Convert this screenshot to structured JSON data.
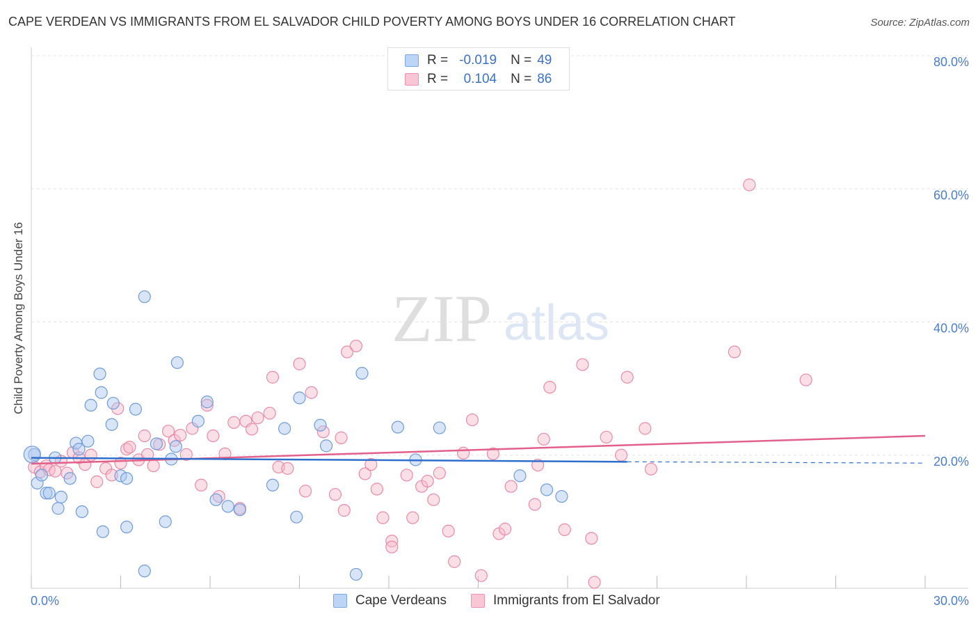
{
  "title": "CAPE VERDEAN VS IMMIGRANTS FROM EL SALVADOR CHILD POVERTY AMONG BOYS UNDER 16 CORRELATION CHART",
  "source": "Source: ZipAtlas.com",
  "watermark": {
    "zip": "ZIP",
    "atlas": "atlas"
  },
  "legend_top": {
    "rows": [
      {
        "r_label": "R =",
        "r_value": "-0.019",
        "n_label": "N =",
        "n_value": "49"
      },
      {
        "r_label": "R =",
        "r_value": "0.104",
        "n_label": "N =",
        "n_value": "86"
      }
    ]
  },
  "legend_bottom": {
    "series": [
      "Cape Verdeans",
      "Immigrants from El Salvador"
    ]
  },
  "colors": {
    "blue_fill": "#a9c6ef",
    "blue_stroke": "#6f9bdb",
    "blue_line": "#2f6fcc",
    "pink_fill": "#f6b7ca",
    "pink_stroke": "#ea8aa8",
    "pink_line": "#e2608a",
    "axis_text": "#4a7dd0",
    "grid": "#e3e3e3"
  },
  "chart_data": {
    "type": "scatter",
    "title": "CAPE VERDEAN VS IMMIGRANTS FROM EL SALVADOR CHILD POVERTY AMONG BOYS UNDER 16 CORRELATION CHART",
    "xlabel": "",
    "ylabel": "Child Poverty Among Boys Under 16",
    "xlim": [
      0,
      30
    ],
    "ylim": [
      0,
      80
    ],
    "x_tick_labels": [
      "0.0%",
      "30.0%"
    ],
    "y_tick_labels": [
      "20.0%",
      "40.0%",
      "60.0%",
      "80.0%"
    ],
    "y_ticks": [
      20,
      40,
      60,
      80
    ],
    "x_ticks": [
      0,
      3,
      6,
      9,
      12,
      15,
      18,
      21,
      24,
      27,
      30
    ],
    "series": [
      {
        "name": "Cape Verdeans",
        "R": -0.019,
        "N": 49,
        "points": [
          [
            0.1,
            20.1
          ],
          [
            0.2,
            15.8
          ],
          [
            0.35,
            17.0
          ],
          [
            0.5,
            14.3
          ],
          [
            0.6,
            14.3
          ],
          [
            0.8,
            19.6
          ],
          [
            0.9,
            12.0
          ],
          [
            1.0,
            13.7
          ],
          [
            1.3,
            16.5
          ],
          [
            1.5,
            21.8
          ],
          [
            1.6,
            20.9
          ],
          [
            1.7,
            11.5
          ],
          [
            1.9,
            22.1
          ],
          [
            2.0,
            27.5
          ],
          [
            2.3,
            32.2
          ],
          [
            2.35,
            29.4
          ],
          [
            2.4,
            8.5
          ],
          [
            2.7,
            24.6
          ],
          [
            2.75,
            27.8
          ],
          [
            3.0,
            16.9
          ],
          [
            3.2,
            16.5
          ],
          [
            3.2,
            9.2
          ],
          [
            3.5,
            26.9
          ],
          [
            3.8,
            43.8
          ],
          [
            3.8,
            2.6
          ],
          [
            4.2,
            21.7
          ],
          [
            4.5,
            10.0
          ],
          [
            4.7,
            19.4
          ],
          [
            4.85,
            21.3
          ],
          [
            4.9,
            33.9
          ],
          [
            5.6,
            25.1
          ],
          [
            5.9,
            28.0
          ],
          [
            6.2,
            13.3
          ],
          [
            6.6,
            12.3
          ],
          [
            7.0,
            11.8
          ],
          [
            8.1,
            15.5
          ],
          [
            8.5,
            24.0
          ],
          [
            8.9,
            10.7
          ],
          [
            9.0,
            28.6
          ],
          [
            9.7,
            24.5
          ],
          [
            9.9,
            21.4
          ],
          [
            11.1,
            32.3
          ],
          [
            10.9,
            2.1
          ],
          [
            12.3,
            24.2
          ],
          [
            12.9,
            19.3
          ],
          [
            13.7,
            24.1
          ],
          [
            16.4,
            16.9
          ],
          [
            17.3,
            14.8
          ],
          [
            17.8,
            13.8
          ]
        ]
      },
      {
        "name": "Immigrants from El Salvador",
        "R": 0.104,
        "N": 86,
        "points": [
          [
            0.1,
            18.2
          ],
          [
            0.3,
            17.5
          ],
          [
            0.5,
            18.4
          ],
          [
            0.6,
            17.8
          ],
          [
            0.8,
            17.6
          ],
          [
            1.0,
            19.1
          ],
          [
            1.2,
            17.3
          ],
          [
            1.4,
            20.4
          ],
          [
            1.6,
            19.6
          ],
          [
            1.8,
            18.6
          ],
          [
            2.0,
            20.0
          ],
          [
            2.2,
            16.0
          ],
          [
            2.5,
            18.0
          ],
          [
            2.7,
            17.0
          ],
          [
            2.9,
            27.0
          ],
          [
            3.0,
            18.8
          ],
          [
            3.2,
            20.9
          ],
          [
            3.3,
            21.2
          ],
          [
            3.6,
            19.3
          ],
          [
            3.8,
            22.9
          ],
          [
            3.9,
            20.1
          ],
          [
            4.1,
            18.4
          ],
          [
            4.3,
            21.6
          ],
          [
            4.6,
            23.6
          ],
          [
            4.8,
            22.2
          ],
          [
            5.0,
            23.0
          ],
          [
            5.2,
            20.1
          ],
          [
            5.4,
            24.0
          ],
          [
            5.7,
            15.5
          ],
          [
            5.9,
            27.5
          ],
          [
            6.1,
            22.9
          ],
          [
            6.3,
            13.8
          ],
          [
            6.5,
            20.2
          ],
          [
            6.8,
            24.9
          ],
          [
            7.0,
            12.0
          ],
          [
            7.2,
            25.1
          ],
          [
            7.4,
            23.9
          ],
          [
            7.6,
            25.6
          ],
          [
            8.0,
            26.3
          ],
          [
            8.1,
            31.7
          ],
          [
            8.3,
            18.2
          ],
          [
            8.6,
            18.0
          ],
          [
            9.0,
            33.7
          ],
          [
            9.2,
            14.6
          ],
          [
            9.4,
            29.4
          ],
          [
            9.8,
            23.5
          ],
          [
            10.2,
            14.1
          ],
          [
            10.4,
            22.6
          ],
          [
            10.5,
            11.7
          ],
          [
            10.6,
            35.5
          ],
          [
            10.9,
            36.4
          ],
          [
            11.2,
            17.2
          ],
          [
            11.4,
            18.6
          ],
          [
            11.6,
            14.9
          ],
          [
            11.8,
            10.6
          ],
          [
            12.1,
            7.1
          ],
          [
            12.1,
            6.2
          ],
          [
            12.6,
            17.0
          ],
          [
            12.8,
            10.6
          ],
          [
            13.1,
            15.3
          ],
          [
            13.3,
            16.1
          ],
          [
            13.5,
            13.3
          ],
          [
            13.7,
            17.3
          ],
          [
            14.0,
            8.6
          ],
          [
            14.2,
            4.0
          ],
          [
            14.5,
            20.3
          ],
          [
            14.8,
            25.3
          ],
          [
            15.1,
            1.9
          ],
          [
            15.5,
            20.2
          ],
          [
            15.7,
            8.2
          ],
          [
            15.9,
            8.9
          ],
          [
            16.1,
            15.3
          ],
          [
            16.9,
            12.6
          ],
          [
            17.2,
            22.4
          ],
          [
            17.9,
            8.8
          ],
          [
            17.0,
            18.5
          ],
          [
            17.4,
            30.2
          ],
          [
            18.5,
            33.6
          ],
          [
            18.8,
            7.5
          ],
          [
            18.9,
            0.9
          ],
          [
            19.3,
            22.7
          ],
          [
            19.8,
            20.0
          ],
          [
            20.0,
            31.7
          ],
          [
            20.6,
            24.0
          ],
          [
            20.8,
            17.9
          ],
          [
            23.6,
            35.5
          ],
          [
            24.1,
            60.6
          ],
          [
            26.0,
            31.3
          ]
        ]
      }
    ],
    "trend_lines": [
      {
        "series": "Cape Verdeans",
        "x": [
          0,
          20.0
        ],
        "y": [
          19.6,
          19.0
        ],
        "dashed_extension_to_x": 30,
        "dashed_extension_y": 18.8
      },
      {
        "series": "Immigrants from El Salvador",
        "x": [
          0,
          30
        ],
        "y": [
          18.7,
          22.9
        ]
      }
    ]
  }
}
